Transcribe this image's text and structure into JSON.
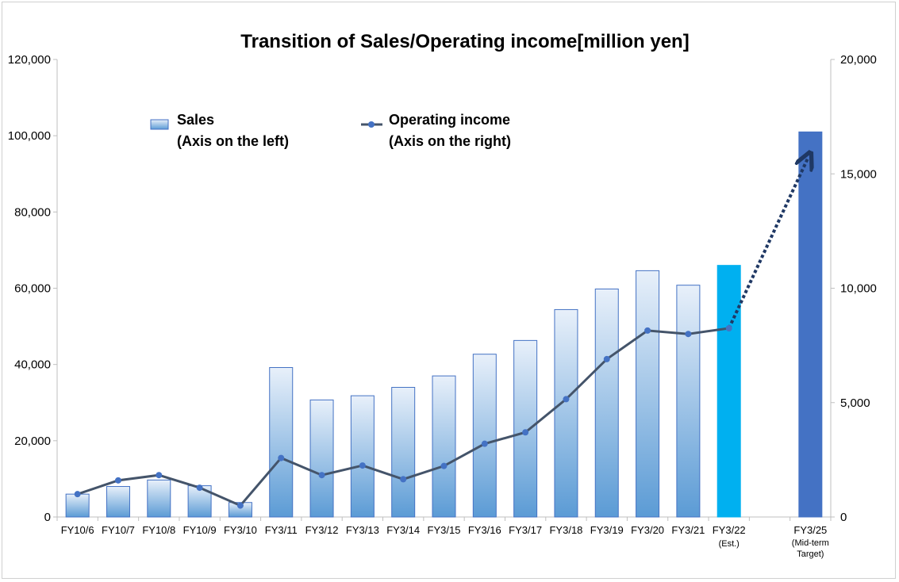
{
  "chart_data": {
    "type": "bar",
    "title": "Transition of Sales/Operating income[million yen]",
    "categories": [
      "FY10/6",
      "FY10/7",
      "FY10/8",
      "FY10/9",
      "FY3/10",
      "FY3/11",
      "FY3/12",
      "FY3/13",
      "FY3/14",
      "FY3/15",
      "FY3/16",
      "FY3/17",
      "FY3/18",
      "FY3/19",
      "FY3/20",
      "FY3/21",
      "FY3/22",
      "",
      "FY3/25"
    ],
    "category_notes": [
      "",
      "",
      "",
      "",
      "",
      "",
      "",
      "",
      "",
      "",
      "",
      "",
      "",
      "",
      "",
      "",
      "(Est.)",
      "",
      "(Mid-term Target)"
    ],
    "series": [
      {
        "name": "Sales",
        "axis_note": "(Axis on the left)",
        "type": "bar",
        "values": [
          6000,
          8000,
          9700,
          8200,
          3800,
          39200,
          30700,
          31800,
          34000,
          37000,
          42700,
          46300,
          54400,
          59800,
          64600,
          60800,
          66000,
          null,
          101000
        ]
      },
      {
        "name": "Operating income",
        "axis_note": "(Axis on the right)",
        "type": "line",
        "values": [
          1000,
          1600,
          1830,
          1280,
          500,
          2580,
          1830,
          2250,
          1650,
          2230,
          3200,
          3700,
          5150,
          6900,
          8150,
          8000,
          8250,
          null,
          null
        ]
      }
    ],
    "target_trend": {
      "from_value": 8250,
      "to_value": 15700,
      "style": "dotted-arrow"
    },
    "y_left": {
      "ticks": [
        "0",
        "20,000",
        "40,000",
        "60,000",
        "80,000",
        "100,000",
        "120,000"
      ],
      "ylim": [
        0,
        120000
      ]
    },
    "y_right": {
      "ticks": [
        "0",
        "5,000",
        "10,000",
        "15,000",
        "20,000"
      ],
      "ylim": [
        0,
        20000
      ]
    },
    "grid": false,
    "legend_position": "top-left",
    "colors": {
      "bar_top": "#e8f0fa",
      "bar_bottom": "#5b9bd5",
      "bar_border": "#4472c4",
      "estimate_bar": "#00b0f0",
      "target_bar": "#4472c4",
      "line": "#44546a",
      "marker": "#4472c4",
      "arrow": "#1f3864"
    }
  }
}
